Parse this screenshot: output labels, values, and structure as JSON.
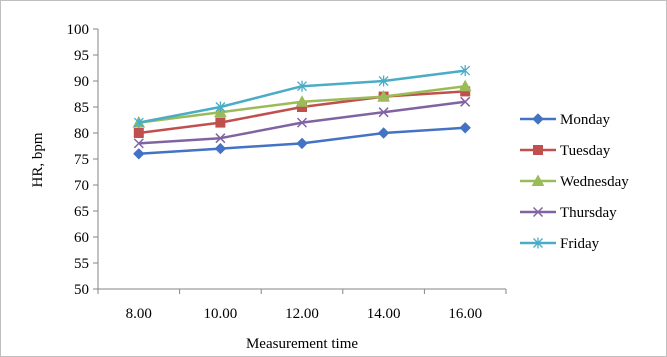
{
  "chart_data": {
    "type": "line",
    "title": "",
    "xlabel": "Measurement time",
    "ylabel": "HR, bpm",
    "categories": [
      "8.00",
      "10.00",
      "12.00",
      "14.00",
      "16.00"
    ],
    "ylim": [
      50,
      100
    ],
    "ytick_step": 5,
    "grid": false,
    "legend_position": "right",
    "series": [
      {
        "name": "Monday",
        "color": "#4472c4",
        "marker": "diamond",
        "values": [
          76,
          77,
          78,
          80,
          81
        ]
      },
      {
        "name": "Tuesday",
        "color": "#c0504d",
        "marker": "square",
        "values": [
          80,
          82,
          85,
          87,
          88
        ]
      },
      {
        "name": "Wednesday",
        "color": "#9bbb59",
        "marker": "triangle",
        "values": [
          82,
          84,
          86,
          87,
          89
        ]
      },
      {
        "name": "Thursday",
        "color": "#8064a2",
        "marker": "x",
        "values": [
          78,
          79,
          82,
          84,
          86
        ]
      },
      {
        "name": "Friday",
        "color": "#4bacc6",
        "marker": "star",
        "values": [
          82,
          85,
          89,
          90,
          92
        ]
      }
    ]
  }
}
